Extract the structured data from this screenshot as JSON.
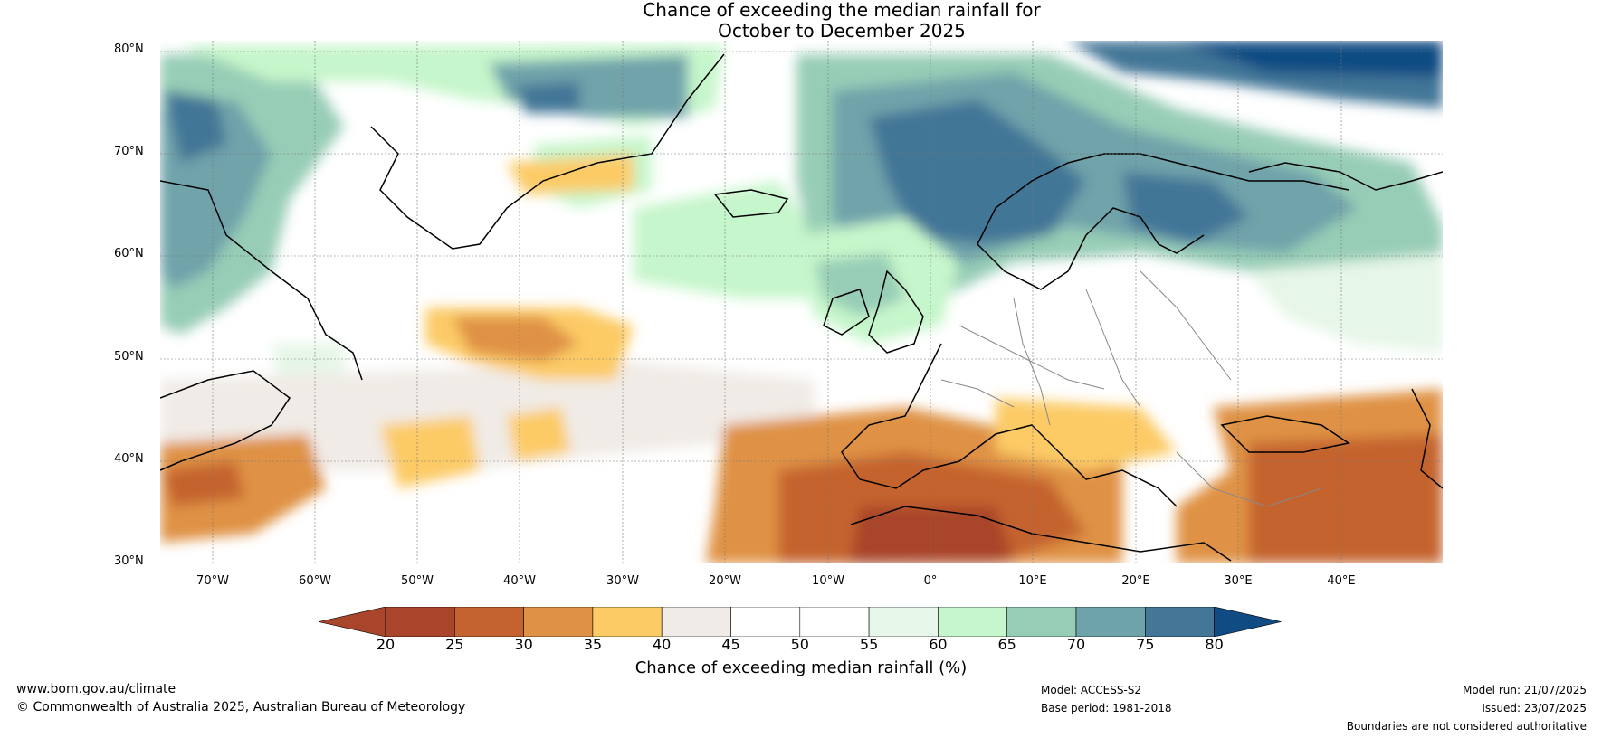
{
  "title_line1": "Chance of exceeding the median rainfall for",
  "title_line2": "October to December 2025",
  "lat_labels": [
    "80°N",
    "70°N",
    "60°N",
    "50°N",
    "40°N",
    "30°N"
  ],
  "lon_labels": [
    "70°W",
    "60°W",
    "50°W",
    "40°W",
    "30°W",
    "20°W",
    "10°W",
    "0°",
    "10°E",
    "20°E",
    "30°E",
    "40°E"
  ],
  "colorbar": {
    "ticks": [
      "20",
      "25",
      "30",
      "35",
      "40",
      "45",
      "50",
      "55",
      "60",
      "65",
      "70",
      "75",
      "80"
    ],
    "colors": [
      "#a9452a",
      "#c4632f",
      "#df9245",
      "#fccb66",
      "#f0ebe6",
      "#ffffff",
      "#ffffff",
      "#e6f6e8",
      "#c6f6cb",
      "#97cdb6",
      "#6fa3aa",
      "#437697",
      "#114b83"
    ],
    "under_color": "#a9452a",
    "over_color": "#114b83",
    "label": "Chance of exceeding median rainfall (%)"
  },
  "footer": {
    "url": "www.bom.gov.au/climate",
    "copyright": "© Commonwealth of Australia 2025, Australian Bureau of Meteorology",
    "model": "Model: ACCESS-S2",
    "base_period": "Base period: 1981-2018",
    "model_run": "Model run: 21/07/2025",
    "issued": "Issued: 23/07/2025",
    "disclaimer": "Boundaries are not considered authoritative"
  }
}
